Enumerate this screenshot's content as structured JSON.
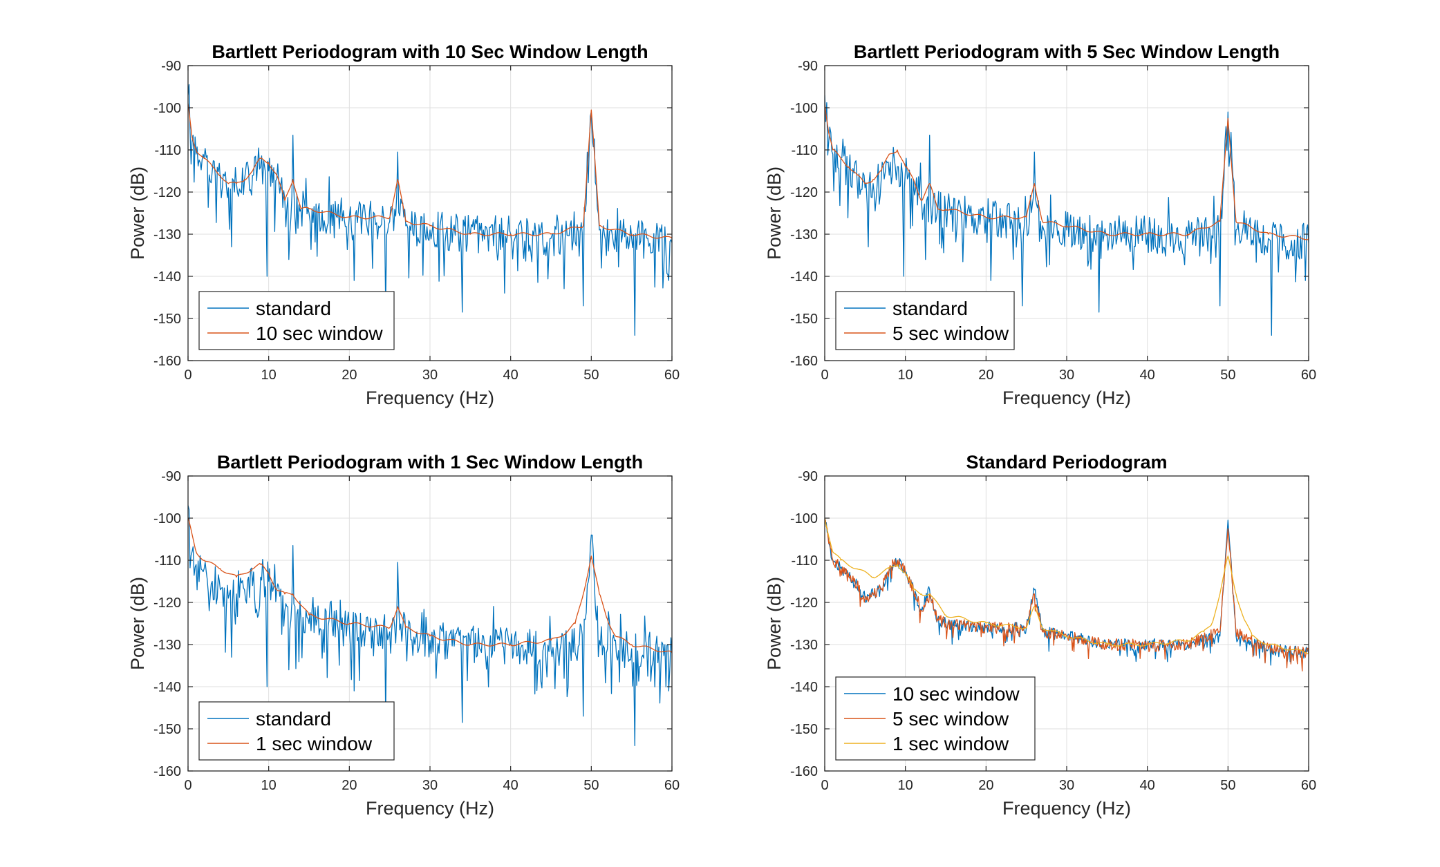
{
  "colors": {
    "blue": "#0072bd",
    "orange": "#d95319",
    "yellow": "#edb120"
  },
  "chart_data": [
    {
      "type": "line",
      "title": "Bartlett Periodogram with 10 Sec Window Length",
      "xlabel": "Frequency (Hz)",
      "ylabel": "Power (dB)",
      "xlim": [
        0,
        60
      ],
      "ylim": [
        -160,
        -90
      ],
      "xticks": [
        0,
        10,
        20,
        30,
        40,
        50,
        60
      ],
      "yticks": [
        -90,
        -100,
        -110,
        -120,
        -130,
        -140,
        -150,
        -160
      ],
      "grid": true,
      "legend_position": "bottom-left",
      "series": [
        {
          "name": "standard",
          "color": "#0072bd",
          "profile": "noisy",
          "x": [
            0,
            0.5,
            1,
            2,
            3,
            4,
            5,
            6,
            7,
            8,
            9,
            10,
            11,
            12,
            13,
            14,
            15,
            20,
            25,
            26,
            27,
            30,
            35,
            40,
            45,
            49,
            50,
            51,
            55,
            60
          ],
          "y": [
            -97,
            -108,
            -111,
            -112,
            -115,
            -117,
            -119,
            -118,
            -117,
            -116,
            -114,
            -115,
            -117,
            -122,
            -123,
            -124,
            -125,
            -126,
            -127,
            -123,
            -128,
            -129,
            -130,
            -130,
            -131,
            -129,
            -101,
            -129,
            -131,
            -132
          ],
          "dips": [
            [
              5.4,
              -133
            ],
            [
              9.8,
              -140
            ],
            [
              12.5,
              -136
            ],
            [
              20.6,
              -141
            ],
            [
              24.5,
              -147
            ],
            [
              34,
              -148.5
            ],
            [
              49,
              -147
            ],
            [
              55.4,
              -154
            ],
            [
              59.6,
              -141
            ]
          ]
        },
        {
          "name": "10 sec window",
          "color": "#d95319",
          "profile": "smooth",
          "x": [
            0,
            0.5,
            1,
            2,
            3,
            4,
            5,
            6,
            7,
            8,
            9,
            10,
            11,
            12,
            13,
            14,
            15,
            20,
            25,
            26,
            27,
            30,
            35,
            40,
            45,
            49,
            50,
            51,
            55,
            60
          ],
          "y": [
            -99,
            -107,
            -110,
            -112,
            -114,
            -116,
            -118,
            -118,
            -117,
            -115,
            -112,
            -113,
            -116,
            -122,
            -117,
            -124,
            -124,
            -126,
            -126,
            -117,
            -127,
            -128,
            -130,
            -130,
            -130,
            -128,
            -100.5,
            -128,
            -130,
            -131
          ]
        }
      ]
    },
    {
      "type": "line",
      "title": "Bartlett Periodogram with 5 Sec Window Length",
      "xlabel": "Frequency (Hz)",
      "ylabel": "Power (dB)",
      "xlim": [
        0,
        60
      ],
      "ylim": [
        -160,
        -90
      ],
      "xticks": [
        0,
        10,
        20,
        30,
        40,
        50,
        60
      ],
      "yticks": [
        -90,
        -100,
        -110,
        -120,
        -130,
        -140,
        -150,
        -160
      ],
      "grid": true,
      "legend_position": "bottom-left",
      "series": [
        {
          "name": "standard",
          "color": "#0072bd",
          "profile": "noisy",
          "x": [
            0,
            0.5,
            1,
            2,
            3,
            4,
            5,
            6,
            7,
            8,
            9,
            10,
            11,
            12,
            13,
            14,
            15,
            20,
            25,
            26,
            27,
            30,
            35,
            40,
            45,
            49,
            50,
            51,
            55,
            60
          ],
          "y": [
            -97,
            -108,
            -111,
            -112,
            -115,
            -117,
            -119,
            -118,
            -117,
            -116,
            -114,
            -115,
            -117,
            -122,
            -123,
            -124,
            -125,
            -126,
            -127,
            -123,
            -128,
            -129,
            -130,
            -130,
            -131,
            -129,
            -101,
            -129,
            -131,
            -132
          ],
          "dips": [
            [
              5.4,
              -133
            ],
            [
              9.8,
              -140
            ],
            [
              12.5,
              -136
            ],
            [
              20.6,
              -141
            ],
            [
              24.5,
              -147
            ],
            [
              34,
              -148.5
            ],
            [
              49,
              -147
            ],
            [
              55.4,
              -154
            ],
            [
              59.6,
              -141
            ]
          ]
        },
        {
          "name": "5 sec window",
          "color": "#d95319",
          "profile": "smooth",
          "x": [
            0,
            0.5,
            1,
            2,
            3,
            4,
            5,
            6,
            7,
            8,
            9,
            10,
            11,
            12,
            13,
            14,
            15,
            20,
            25,
            26,
            27,
            30,
            35,
            40,
            45,
            49,
            50,
            51,
            55,
            60
          ],
          "y": [
            -99,
            -106,
            -110,
            -112,
            -114,
            -116,
            -118,
            -117,
            -115,
            -111,
            -110,
            -114,
            -117,
            -122,
            -118,
            -124,
            -124,
            -126,
            -126,
            -118,
            -127,
            -128,
            -130,
            -130,
            -130,
            -127,
            -102.5,
            -127,
            -130,
            -131
          ]
        }
      ]
    },
    {
      "type": "line",
      "title": "Bartlett Periodogram with 1 Sec Window Length",
      "xlabel": "Frequency (Hz)",
      "ylabel": "Power (dB)",
      "xlim": [
        0,
        60
      ],
      "ylim": [
        -160,
        -90
      ],
      "xticks": [
        0,
        10,
        20,
        30,
        40,
        50,
        60
      ],
      "yticks": [
        -90,
        -100,
        -110,
        -120,
        -130,
        -140,
        -150,
        -160
      ],
      "grid": true,
      "legend_position": "bottom-left",
      "series": [
        {
          "name": "standard",
          "color": "#0072bd",
          "profile": "noisy",
          "x": [
            0,
            0.5,
            1,
            2,
            3,
            4,
            5,
            6,
            7,
            8,
            9,
            10,
            11,
            12,
            13,
            14,
            15,
            20,
            25,
            26,
            27,
            30,
            35,
            40,
            45,
            49,
            50,
            51,
            55,
            60
          ],
          "y": [
            -97,
            -108,
            -111,
            -112,
            -115,
            -117,
            -119,
            -118,
            -117,
            -116,
            -114,
            -115,
            -117,
            -122,
            -123,
            -124,
            -125,
            -126,
            -127,
            -123,
            -128,
            -129,
            -130,
            -130,
            -131,
            -129,
            -104,
            -129,
            -131,
            -132
          ],
          "dips": [
            [
              5.4,
              -133
            ],
            [
              9.8,
              -140
            ],
            [
              12.5,
              -136
            ],
            [
              20.6,
              -141
            ],
            [
              24.5,
              -147
            ],
            [
              34,
              -148.5
            ],
            [
              49,
              -147
            ],
            [
              55.4,
              -154
            ],
            [
              59.6,
              -141
            ]
          ]
        },
        {
          "name": "1 sec window",
          "color": "#d95319",
          "profile": "smooth",
          "x": [
            0,
            1,
            2,
            4,
            6,
            8,
            9,
            10,
            11,
            12,
            13,
            15,
            20,
            25,
            26,
            27,
            30,
            35,
            40,
            45,
            47,
            48,
            49,
            50,
            51,
            52,
            53,
            55,
            60
          ],
          "y": [
            -100,
            -108,
            -110,
            -112,
            -114,
            -112,
            -111,
            -113,
            -117,
            -118,
            -118,
            -123,
            -125,
            -126,
            -121,
            -126,
            -128,
            -130,
            -130,
            -129,
            -127,
            -125,
            -118,
            -109,
            -118,
            -124,
            -128,
            -130,
            -132
          ]
        }
      ]
    },
    {
      "type": "line",
      "title": "Standard Periodogram",
      "xlabel": "Frequency (Hz)",
      "ylabel": "Power (dB)",
      "xlim": [
        0,
        60
      ],
      "ylim": [
        -160,
        -90
      ],
      "xticks": [
        0,
        10,
        20,
        30,
        40,
        50,
        60
      ],
      "yticks": [
        -90,
        -100,
        -110,
        -120,
        -130,
        -140,
        -150,
        -160
      ],
      "grid": true,
      "legend_position": "bottom-left",
      "series": [
        {
          "name": "10 sec window",
          "color": "#0072bd",
          "profile": "medium",
          "x": [
            0,
            0.5,
            1,
            2,
            3,
            4,
            5,
            6,
            7,
            8,
            9,
            10,
            11,
            12,
            13,
            14,
            15,
            20,
            25,
            26,
            27,
            30,
            35,
            40,
            45,
            49,
            50,
            51,
            55,
            60
          ],
          "y": [
            -100,
            -106,
            -110,
            -112,
            -114,
            -116,
            -119,
            -118,
            -117,
            -112,
            -110,
            -113,
            -117,
            -122,
            -117,
            -124,
            -125,
            -126,
            -126,
            -117,
            -127,
            -128,
            -130,
            -130,
            -130,
            -128,
            -100.5,
            -128,
            -131,
            -132
          ]
        },
        {
          "name": "5 sec window",
          "color": "#d95319",
          "profile": "medium",
          "x": [
            0,
            0.5,
            1,
            2,
            3,
            4,
            5,
            6,
            7,
            8,
            9,
            10,
            11,
            12,
            13,
            14,
            15,
            20,
            25,
            26,
            27,
            30,
            35,
            40,
            45,
            49,
            50,
            51,
            55,
            60
          ],
          "y": [
            -100,
            -106,
            -110,
            -112,
            -114,
            -116,
            -119,
            -118,
            -117,
            -112,
            -110,
            -113,
            -117,
            -122,
            -118,
            -124,
            -125,
            -126,
            -126,
            -118,
            -127,
            -128,
            -130,
            -130,
            -130,
            -127,
            -102.5,
            -127,
            -131,
            -132
          ]
        },
        {
          "name": "1 sec window",
          "color": "#edb120",
          "profile": "smooth",
          "x": [
            0,
            1,
            2,
            4,
            6,
            8,
            9,
            10,
            11,
            12,
            13,
            15,
            20,
            25,
            26,
            27,
            30,
            35,
            40,
            45,
            47,
            48,
            49,
            50,
            51,
            52,
            53,
            55,
            60
          ],
          "y": [
            -100,
            -108,
            -110,
            -112,
            -114,
            -112,
            -111,
            -113,
            -117,
            -118,
            -118,
            -123,
            -125,
            -126,
            -121,
            -126,
            -128,
            -130,
            -130,
            -129,
            -127,
            -125,
            -118,
            -109,
            -118,
            -124,
            -128,
            -130,
            -132
          ]
        }
      ]
    }
  ]
}
